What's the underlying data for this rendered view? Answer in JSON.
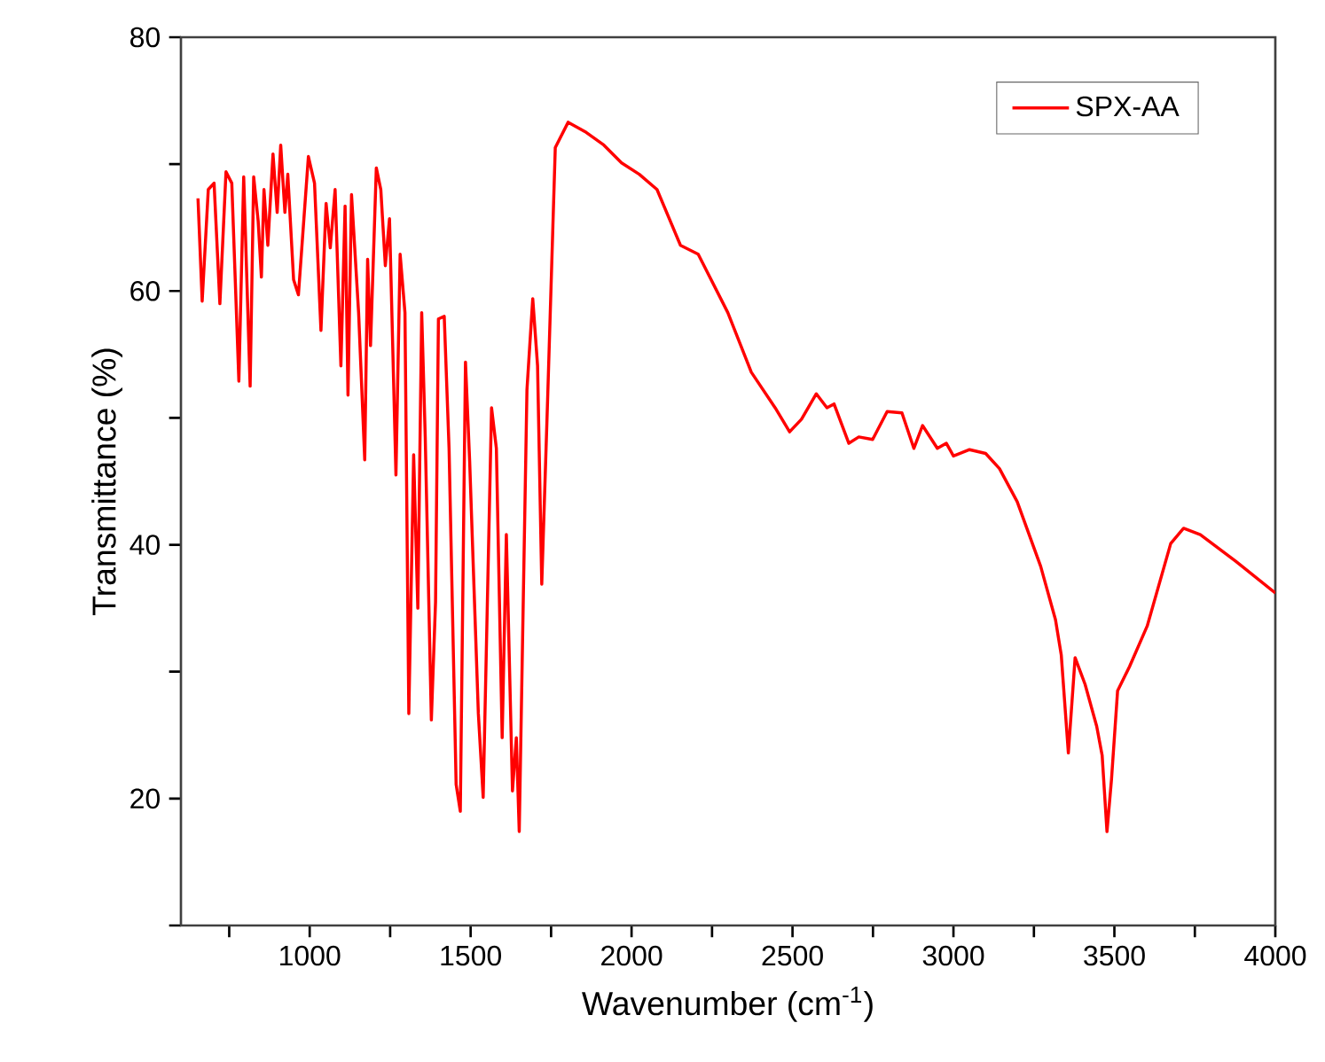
{
  "chart_data": {
    "type": "line",
    "xlabel": "Wavenumber (cm$^{-1}$)",
    "ylabel": "Transmittance (%)",
    "xlim": [
      600,
      4000
    ],
    "ylim": [
      10,
      80
    ],
    "xticks": [
      {
        "value": 750,
        "label": null
      },
      1000,
      {
        "value": 1250,
        "label": null
      },
      1500,
      {
        "value": 1750,
        "label": null
      },
      2000,
      {
        "value": 2250,
        "label": null
      },
      2500,
      {
        "value": 2750,
        "label": null
      },
      3000,
      {
        "value": 3250,
        "label": null
      },
      3500,
      {
        "value": 3750,
        "label": null
      },
      4000
    ],
    "yticks": [
      {
        "value": 10,
        "label": null
      },
      20,
      {
        "value": 30,
        "label": null
      },
      40,
      {
        "value": 50,
        "label": null
      },
      60,
      {
        "value": 70,
        "label": null
      },
      80
    ],
    "legend": "top right",
    "marker": "none",
    "line_style": "solid",
    "series": [
      {
        "name": "SPX-AA",
        "color": "#ff0000",
        "x": [
          653,
          666,
          685,
          703,
          721,
          740,
          758,
          780,
          795,
          815,
          826,
          840,
          850,
          858,
          870,
          886,
          899,
          910,
          923,
          932,
          950,
          965,
          996,
          1015,
          1035,
          1051,
          1064,
          1079,
          1097,
          1110,
          1119,
          1130,
          1152,
          1171,
          1180,
          1189,
          1207,
          1221,
          1235,
          1248,
          1268,
          1281,
          1296,
          1308,
          1323,
          1336,
          1348,
          1359,
          1378,
          1391,
          1400,
          1418,
          1433,
          1455,
          1468,
          1484,
          1497,
          1524,
          1539,
          1565,
          1580,
          1598,
          1611,
          1630,
          1642,
          1651,
          1675,
          1693,
          1708,
          1721,
          1739,
          1763,
          1803,
          1859,
          1914,
          1969,
          2024,
          2079,
          2152,
          2207,
          2299,
          2372,
          2446,
          2491,
          2528,
          2574,
          2607,
          2629,
          2675,
          2706,
          2749,
          2794,
          2840,
          2877,
          2904,
          2950,
          2978,
          3000,
          3050,
          3100,
          3143,
          3198,
          3271,
          3317,
          3335,
          3357,
          3378,
          3409,
          3445,
          3462,
          3477,
          3491,
          3510,
          3547,
          3602,
          3675,
          3715,
          3767,
          3877,
          4000
        ],
        "values": [
          67.3,
          59.2,
          68.0,
          68.5,
          59.0,
          69.4,
          68.5,
          52.9,
          69.0,
          52.5,
          69.0,
          65.5,
          61.1,
          68.0,
          63.6,
          70.8,
          66.2,
          71.5,
          66.2,
          69.2,
          60.9,
          59.7,
          70.6,
          68.5,
          56.9,
          66.9,
          63.4,
          68.0,
          54.1,
          66.7,
          51.8,
          67.6,
          58.3,
          46.7,
          62.5,
          55.7,
          69.7,
          68.0,
          62.0,
          65.7,
          45.5,
          62.9,
          58.3,
          26.7,
          47.1,
          35.0,
          58.3,
          48.5,
          26.2,
          35.5,
          57.8,
          58.0,
          47.6,
          21.1,
          19.0,
          54.4,
          46.6,
          26.7,
          20.1,
          50.8,
          47.6,
          24.8,
          40.8,
          20.6,
          24.8,
          17.4,
          52.2,
          59.4,
          54.1,
          36.9,
          51.3,
          71.3,
          73.3,
          72.5,
          71.5,
          70.1,
          69.2,
          68.0,
          63.6,
          62.9,
          58.3,
          53.6,
          50.8,
          48.9,
          49.9,
          51.9,
          50.8,
          51.1,
          48.0,
          48.5,
          48.3,
          50.5,
          50.4,
          47.6,
          49.4,
          47.6,
          48.0,
          47.0,
          47.5,
          47.2,
          46.0,
          43.4,
          38.3,
          34.1,
          31.3,
          23.6,
          31.1,
          29.0,
          25.7,
          23.4,
          17.4,
          21.5,
          28.5,
          30.4,
          33.6,
          40.1,
          41.3,
          40.8,
          38.7,
          36.2
        ]
      }
    ]
  }
}
